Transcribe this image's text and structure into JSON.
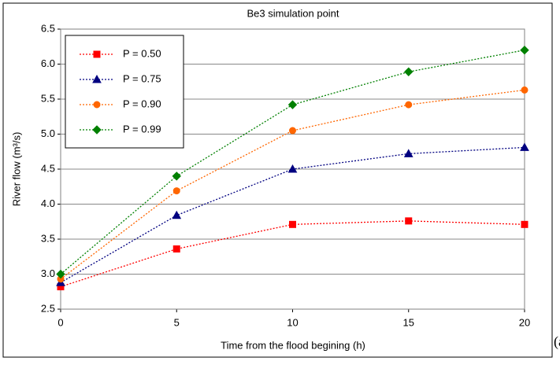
{
  "chart_data": {
    "type": "line",
    "title": "Be3 simulation point",
    "x_label": "Time from the flood begining (h)",
    "y_label": "River flow (m³/s)",
    "panel_label": "(a)",
    "x": [
      0,
      5,
      10,
      15,
      20
    ],
    "series": [
      {
        "name": "P = 0.50",
        "color": "#ff0000",
        "marker": "square",
        "values": [
          2.82,
          3.36,
          3.71,
          3.76,
          3.71
        ]
      },
      {
        "name": "P = 0.75",
        "color": "#000080",
        "marker": "triangle",
        "values": [
          2.88,
          3.84,
          4.5,
          4.72,
          4.81
        ]
      },
      {
        "name": "P = 0.90",
        "color": "#ff6600",
        "marker": "circle",
        "values": [
          2.93,
          4.19,
          5.05,
          5.42,
          5.63
        ]
      },
      {
        "name": "P = 0.99",
        "color": "#008000",
        "marker": "diamond",
        "values": [
          3.0,
          4.4,
          5.42,
          5.89,
          6.2
        ]
      }
    ],
    "xlim": [
      0,
      20
    ],
    "xticks": [
      0,
      5,
      10,
      15,
      20
    ],
    "ylim": [
      2.5,
      6.5
    ],
    "yticks": [
      2.5,
      {
        "value": 3,
        "label": "3.0"
      },
      3.5,
      {
        "value": 4,
        "label": "4.0"
      },
      4.5,
      {
        "value": 5,
        "label": "5.0"
      },
      5.5,
      {
        "value": 6,
        "label": "6.0"
      },
      6.5
    ],
    "grid": true,
    "legend": "upper left"
  }
}
